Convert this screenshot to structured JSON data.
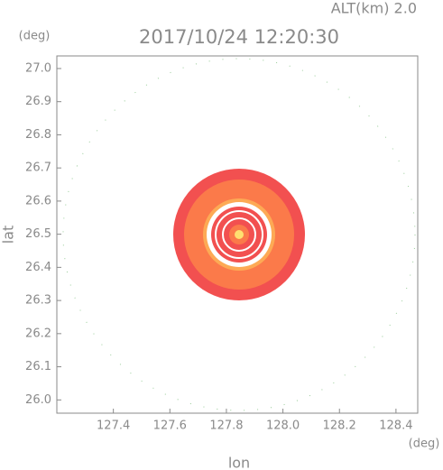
{
  "chart_data": {
    "type": "radar",
    "title": "2017/10/24 12:20:30",
    "subtitle": "ALT(km) 2.0",
    "x_label": "lon",
    "y_label": "lat",
    "x_unit": "(deg)",
    "y_unit": "(deg)",
    "xlim": [
      127.2,
      128.477
    ],
    "ylim": [
      25.96,
      27.038
    ],
    "xticks": [
      127.4,
      127.6,
      127.8,
      {
        "value": 128.0,
        "label": "128.0"
      },
      128.2,
      128.4
    ],
    "yticks": [
      {
        "value": 26.0,
        "label": "26.0"
      },
      26.1,
      26.2,
      26.3,
      26.4,
      26.5,
      26.6,
      26.7,
      26.8,
      26.9,
      {
        "value": 27.0,
        "label": "27.0"
      }
    ]
  }
}
